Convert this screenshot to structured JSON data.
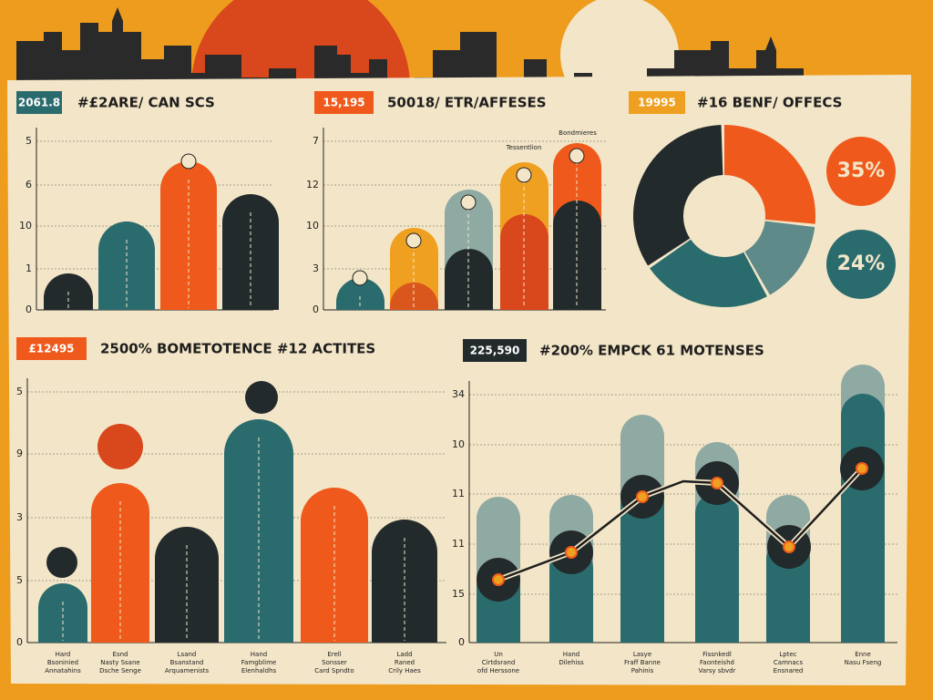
{
  "panels": [
    {
      "badge": "2061.8",
      "title": "#£2ARE/ CAN SCS",
      "axis_labels": [
        "5",
        "6",
        "10",
        "1",
        "0"
      ]
    },
    {
      "badge": "15,195",
      "title": "50018/ ETR/AFFESES",
      "axis_labels": [
        "7",
        "12",
        "10",
        "3",
        "0"
      ],
      "annotations": [
        "Tessentlion",
        "Bondmieres"
      ]
    },
    {
      "badge": "19995",
      "title": "#16 BENF/ OFFECS",
      "callouts": [
        "35%",
        "24%"
      ]
    },
    {
      "badge": "£12495",
      "title": "2500% BOMETOTENCE #12 ACTITES",
      "axis_labels": [
        "5",
        "9",
        "3",
        "5",
        "0"
      ],
      "categories": [
        [
          "Hard",
          "Bsoninied",
          "Annatahins"
        ],
        [
          "Esnd",
          "Nasty Ssane",
          "Dsche Senge"
        ],
        [
          "Lsand",
          "Bsanstand",
          "Arquamenists"
        ],
        [
          "Hand",
          "Famgblime",
          "Elenhaldhs"
        ],
        [
          "Erell",
          "Sonsser",
          "Card Spndto"
        ],
        [
          "Ladd",
          "Raned",
          "Crily Haes"
        ]
      ]
    },
    {
      "badge": "225,590",
      "title": "#200% EMPCK 61 MOTENSES",
      "axis_labels": [
        "34",
        "10",
        "11",
        "11",
        "15",
        "0"
      ],
      "categories": [
        [
          "Un",
          "Cirtdsrand",
          "ofd Herssone"
        ],
        [
          "Hand",
          "Dilehiss"
        ],
        [
          "Lasye",
          "Fraff Banne",
          "Pahinis"
        ],
        [
          "Fissnkedl",
          "Faonteishd",
          "Varsy sbvdr"
        ],
        [
          "Lptec",
          "Camnacs",
          "Ensnared"
        ],
        [
          "Enne",
          "Nasu Fseng"
        ]
      ]
    }
  ]
}
